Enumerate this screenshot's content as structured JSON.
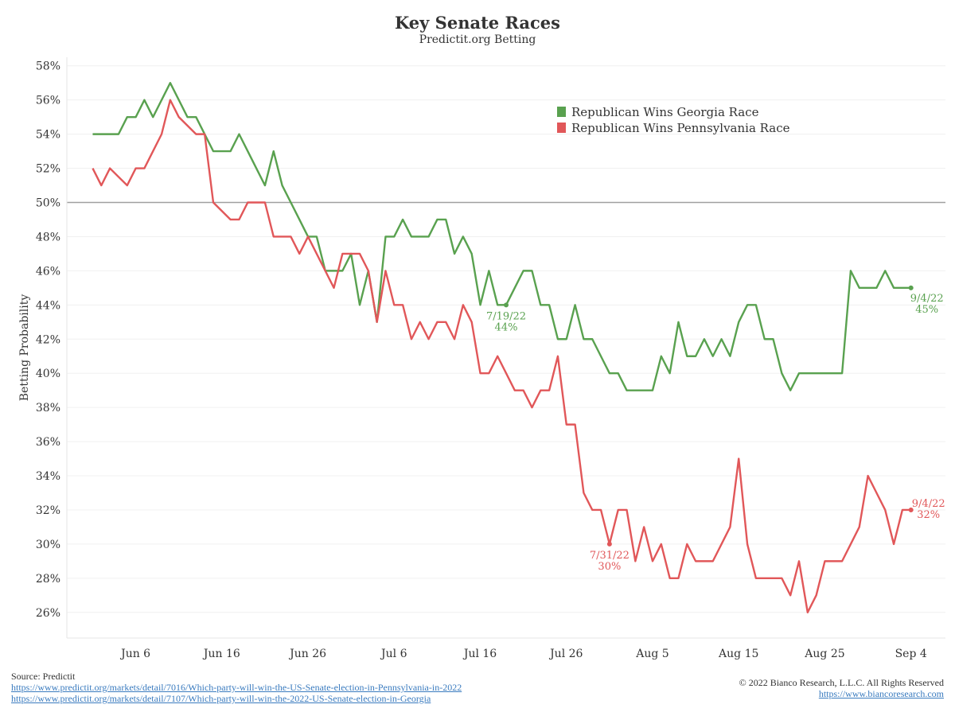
{
  "chart_data": {
    "type": "line",
    "title": "Key Senate Races",
    "subtitle": "Predictit.org Betting",
    "ylabel": "Betting Probability",
    "xlabel": "",
    "ylim": [
      24.5,
      58.5
    ],
    "yticks": [
      "26%",
      "28%",
      "30%",
      "32%",
      "34%",
      "36%",
      "38%",
      "40%",
      "42%",
      "44%",
      "46%",
      "48%",
      "50%",
      "52%",
      "54%",
      "56%",
      "58%"
    ],
    "ytick_values": [
      26,
      28,
      30,
      32,
      34,
      36,
      38,
      40,
      42,
      44,
      46,
      48,
      50,
      52,
      54,
      56,
      58
    ],
    "xlim": [
      "2022-05-29",
      "2022-09-08"
    ],
    "xticks": [
      {
        "date": "2022-06-06",
        "label": "Jun 6"
      },
      {
        "date": "2022-06-16",
        "label": "Jun 16"
      },
      {
        "date": "2022-06-26",
        "label": "Jun 26"
      },
      {
        "date": "2022-07-06",
        "label": "Jul 6"
      },
      {
        "date": "2022-07-16",
        "label": "Jul 16"
      },
      {
        "date": "2022-07-26",
        "label": "Jul 26"
      },
      {
        "date": "2022-08-05",
        "label": "Aug 5"
      },
      {
        "date": "2022-08-15",
        "label": "Aug 15"
      },
      {
        "date": "2022-08-25",
        "label": "Aug 25"
      },
      {
        "date": "2022-09-04",
        "label": "Sep 4"
      }
    ],
    "reference_line": 50,
    "grid": true,
    "legend_position": "top-right",
    "series": [
      {
        "name": "Republican Wins Georgia Race",
        "color": "#59a14f",
        "x": [
          "2022-06-01",
          "2022-06-02",
          "2022-06-03",
          "2022-06-04",
          "2022-06-05",
          "2022-06-06",
          "2022-06-07",
          "2022-06-08",
          "2022-06-09",
          "2022-06-10",
          "2022-06-11",
          "2022-06-12",
          "2022-06-13",
          "2022-06-14",
          "2022-06-15",
          "2022-06-16",
          "2022-06-17",
          "2022-06-18",
          "2022-06-19",
          "2022-06-20",
          "2022-06-21",
          "2022-06-22",
          "2022-06-23",
          "2022-06-24",
          "2022-06-25",
          "2022-06-26",
          "2022-06-27",
          "2022-06-28",
          "2022-06-29",
          "2022-06-30",
          "2022-07-01",
          "2022-07-02",
          "2022-07-03",
          "2022-07-04",
          "2022-07-05",
          "2022-07-06",
          "2022-07-07",
          "2022-07-08",
          "2022-07-09",
          "2022-07-10",
          "2022-07-11",
          "2022-07-12",
          "2022-07-13",
          "2022-07-14",
          "2022-07-15",
          "2022-07-16",
          "2022-07-17",
          "2022-07-18",
          "2022-07-19",
          "2022-07-20",
          "2022-07-21",
          "2022-07-22",
          "2022-07-23",
          "2022-07-24",
          "2022-07-25",
          "2022-07-26",
          "2022-07-27",
          "2022-07-28",
          "2022-07-29",
          "2022-07-30",
          "2022-07-31",
          "2022-08-01",
          "2022-08-02",
          "2022-08-03",
          "2022-08-04",
          "2022-08-05",
          "2022-08-06",
          "2022-08-07",
          "2022-08-08",
          "2022-08-09",
          "2022-08-10",
          "2022-08-11",
          "2022-08-12",
          "2022-08-13",
          "2022-08-14",
          "2022-08-15",
          "2022-08-16",
          "2022-08-17",
          "2022-08-18",
          "2022-08-19",
          "2022-08-20",
          "2022-08-21",
          "2022-08-22",
          "2022-08-23",
          "2022-08-24",
          "2022-08-25",
          "2022-08-26",
          "2022-08-27",
          "2022-08-28",
          "2022-08-29",
          "2022-08-30",
          "2022-08-31",
          "2022-09-01",
          "2022-09-02",
          "2022-09-03",
          "2022-09-04"
        ],
        "values": [
          54,
          54,
          54,
          54,
          55,
          55,
          56,
          55,
          56,
          57,
          56,
          55,
          55,
          54,
          53,
          53,
          53,
          54,
          53,
          52,
          51,
          53,
          51,
          50,
          49,
          48,
          48,
          46,
          46,
          46,
          47,
          44,
          46,
          43,
          48,
          48,
          49,
          48,
          48,
          48,
          49,
          49,
          47,
          48,
          47,
          44,
          46,
          44,
          44,
          45,
          46,
          46,
          44,
          44,
          42,
          42,
          44,
          42,
          42,
          41,
          40,
          40,
          39,
          39,
          39,
          39,
          41,
          40,
          43,
          41,
          41,
          42,
          41,
          42,
          41,
          43,
          44,
          44,
          42,
          42,
          40,
          39,
          40,
          40,
          40,
          40,
          40,
          40,
          46,
          45,
          45,
          45,
          46,
          45,
          45,
          45
        ]
      },
      {
        "name": "Republican Wins Pennsylvania Race",
        "color": "#e15759",
        "x": [
          "2022-06-01",
          "2022-06-02",
          "2022-06-03",
          "2022-06-04",
          "2022-06-05",
          "2022-06-06",
          "2022-06-07",
          "2022-06-08",
          "2022-06-09",
          "2022-06-10",
          "2022-06-11",
          "2022-06-12",
          "2022-06-13",
          "2022-06-14",
          "2022-06-15",
          "2022-06-16",
          "2022-06-17",
          "2022-06-18",
          "2022-06-19",
          "2022-06-20",
          "2022-06-21",
          "2022-06-22",
          "2022-06-23",
          "2022-06-24",
          "2022-06-25",
          "2022-06-26",
          "2022-06-27",
          "2022-06-28",
          "2022-06-29",
          "2022-06-30",
          "2022-07-01",
          "2022-07-02",
          "2022-07-03",
          "2022-07-04",
          "2022-07-05",
          "2022-07-06",
          "2022-07-07",
          "2022-07-08",
          "2022-07-09",
          "2022-07-10",
          "2022-07-11",
          "2022-07-12",
          "2022-07-13",
          "2022-07-14",
          "2022-07-15",
          "2022-07-16",
          "2022-07-17",
          "2022-07-18",
          "2022-07-19",
          "2022-07-20",
          "2022-07-21",
          "2022-07-22",
          "2022-07-23",
          "2022-07-24",
          "2022-07-25",
          "2022-07-26",
          "2022-07-27",
          "2022-07-28",
          "2022-07-29",
          "2022-07-30",
          "2022-07-31",
          "2022-08-01",
          "2022-08-02",
          "2022-08-03",
          "2022-08-04",
          "2022-08-05",
          "2022-08-06",
          "2022-08-07",
          "2022-08-08",
          "2022-08-09",
          "2022-08-10",
          "2022-08-11",
          "2022-08-12",
          "2022-08-13",
          "2022-08-14",
          "2022-08-15",
          "2022-08-16",
          "2022-08-17",
          "2022-08-18",
          "2022-08-19",
          "2022-08-20",
          "2022-08-21",
          "2022-08-22",
          "2022-08-23",
          "2022-08-24",
          "2022-08-25",
          "2022-08-26",
          "2022-08-27",
          "2022-08-28",
          "2022-08-29",
          "2022-08-30",
          "2022-08-31",
          "2022-09-01",
          "2022-09-02",
          "2022-09-03",
          "2022-09-04"
        ],
        "values": [
          52,
          51,
          52,
          51.5,
          51,
          52,
          52,
          53,
          54,
          56,
          55,
          54.5,
          54,
          54,
          50,
          49.5,
          49,
          49,
          50,
          50,
          50,
          48,
          48,
          48,
          47,
          48,
          47,
          46,
          45,
          47,
          47,
          47,
          46,
          43,
          46,
          44,
          44,
          42,
          43,
          42,
          43,
          43,
          42,
          44,
          43,
          40,
          40,
          41,
          40,
          39,
          39,
          38,
          39,
          39,
          41,
          37,
          37,
          33,
          32,
          32,
          30,
          32,
          32,
          29,
          31,
          29,
          30,
          28,
          28,
          30,
          29,
          29,
          29,
          30,
          31,
          35,
          30,
          28,
          28,
          28,
          28,
          27,
          29,
          26,
          27,
          29,
          29,
          29,
          30,
          31,
          34,
          33,
          32,
          30,
          32,
          32
        ]
      }
    ],
    "annotations": [
      {
        "series": 0,
        "date": "2022-07-19",
        "value": 44,
        "date_label": "7/19/22",
        "value_label": "44%"
      },
      {
        "series": 1,
        "date": "2022-07-31",
        "value": 30,
        "date_label": "7/31/22",
        "value_label": "30%"
      },
      {
        "series": 0,
        "date": "2022-09-04",
        "value": 45,
        "date_label": "9/4/22",
        "value_label": "45%"
      },
      {
        "series": 1,
        "date": "2022-09-04",
        "value": 32,
        "date_label": "9/4/22",
        "value_label": "32%"
      }
    ]
  },
  "footer": {
    "source": "Source: Predictit",
    "link1": "https://www.predictit.org/markets/detail/7016/Which-party-will-win-the-US-Senate-election-in-Pennsylvania-in-2022",
    "link2": "https://www.predictit.org/markets/detail/7107/Which-party-will-win-the-2022-US-Senate-election-in-Georgia",
    "copyright": "© 2022 Bianco Research, L.L.C. All Rights Reserved",
    "website": "https://www.biancoresearch.com"
  }
}
